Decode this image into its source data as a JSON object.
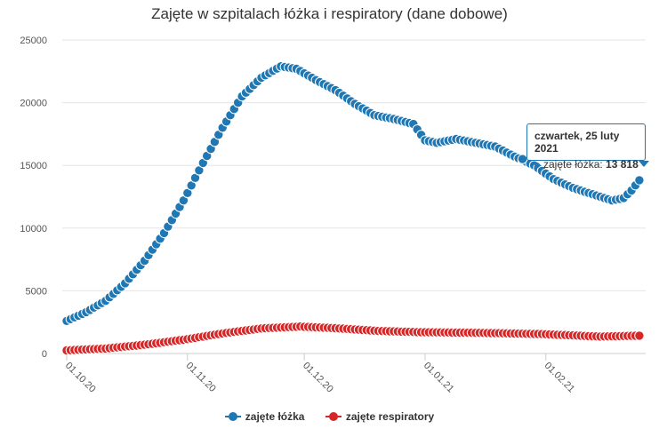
{
  "chart_data": {
    "type": "line",
    "title": "Zajęte w szpitalach łóżka i respiratory (dane dobowe)",
    "xlabel": "",
    "ylabel": "",
    "x_start": "2020-10-01",
    "x_ticks": [
      "01.10.20",
      "01.11.20",
      "01.12.20",
      "01.01.21",
      "01.02.21"
    ],
    "y_ticks": [
      "0",
      "5000",
      "10000",
      "15000",
      "20000",
      "25000"
    ],
    "ylim": [
      0,
      25000
    ],
    "grid": true,
    "legend_position": "bottom",
    "series": [
      {
        "name": "zajęte łóżka",
        "color": "#1f77b4",
        "keypoints": [
          {
            "date": "2020-10-01",
            "value": 2600
          },
          {
            "date": "2020-10-06",
            "value": 3300
          },
          {
            "date": "2020-10-11",
            "value": 4200
          },
          {
            "date": "2020-10-16",
            "value": 5600
          },
          {
            "date": "2020-10-21",
            "value": 7400
          },
          {
            "date": "2020-10-26",
            "value": 9600
          },
          {
            "date": "2020-10-31",
            "value": 12200
          },
          {
            "date": "2020-11-05",
            "value": 15200
          },
          {
            "date": "2020-11-10",
            "value": 18000
          },
          {
            "date": "2020-11-15",
            "value": 20500
          },
          {
            "date": "2020-11-20",
            "value": 22000
          },
          {
            "date": "2020-11-25",
            "value": 22900
          },
          {
            "date": "2020-11-29",
            "value": 22700
          },
          {
            "date": "2020-12-04",
            "value": 21800
          },
          {
            "date": "2020-12-09",
            "value": 21000
          },
          {
            "date": "2020-12-14",
            "value": 19900
          },
          {
            "date": "2020-12-19",
            "value": 19000
          },
          {
            "date": "2020-12-24",
            "value": 18700
          },
          {
            "date": "2020-12-29",
            "value": 18300
          },
          {
            "date": "2021-01-01",
            "value": 17000
          },
          {
            "date": "2021-01-04",
            "value": 16800
          },
          {
            "date": "2021-01-09",
            "value": 17100
          },
          {
            "date": "2021-01-14",
            "value": 16800
          },
          {
            "date": "2021-01-19",
            "value": 16500
          },
          {
            "date": "2021-01-24",
            "value": 15700
          },
          {
            "date": "2021-01-29",
            "value": 15000
          },
          {
            "date": "2021-02-03",
            "value": 13900
          },
          {
            "date": "2021-02-08",
            "value": 13200
          },
          {
            "date": "2021-02-13",
            "value": 12700
          },
          {
            "date": "2021-02-18",
            "value": 12200
          },
          {
            "date": "2021-02-21",
            "value": 12400
          },
          {
            "date": "2021-02-23",
            "value": 13000
          },
          {
            "date": "2021-02-25",
            "value": 13818
          }
        ],
        "outliers": [
          {
            "date": "2021-01-26",
            "value": 15500
          }
        ]
      },
      {
        "name": "zajęte respiratory",
        "color": "#d62728",
        "keypoints": [
          {
            "date": "2020-10-01",
            "value": 250
          },
          {
            "date": "2020-10-11",
            "value": 400
          },
          {
            "date": "2020-10-21",
            "value": 700
          },
          {
            "date": "2020-10-31",
            "value": 1100
          },
          {
            "date": "2020-11-10",
            "value": 1600
          },
          {
            "date": "2020-11-20",
            "value": 2000
          },
          {
            "date": "2020-11-30",
            "value": 2150
          },
          {
            "date": "2020-12-10",
            "value": 2000
          },
          {
            "date": "2020-12-20",
            "value": 1800
          },
          {
            "date": "2020-12-31",
            "value": 1700
          },
          {
            "date": "2021-01-15",
            "value": 1650
          },
          {
            "date": "2021-01-31",
            "value": 1550
          },
          {
            "date": "2021-02-15",
            "value": 1350
          },
          {
            "date": "2021-02-25",
            "value": 1420
          }
        ],
        "outliers": []
      }
    ]
  },
  "tooltip": {
    "title": "czwartek, 25 luty 2021",
    "series_label": "zajęte łóżka: ",
    "value": "13 818"
  },
  "legend": {
    "items": [
      "zajęte łóżka",
      "zajęte respiratory"
    ]
  }
}
